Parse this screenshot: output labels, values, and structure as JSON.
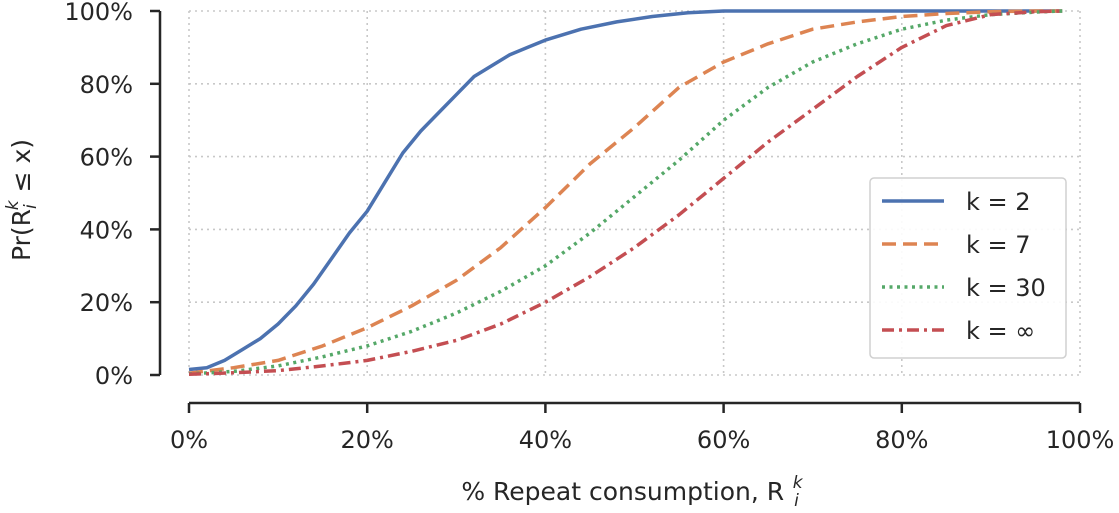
{
  "chart_data": {
    "type": "line",
    "title": "",
    "xlabel": "% Repeat consumption, R",
    "xlabel_sup": "k",
    "xlabel_sub": "i",
    "ylabel": "Pr(R",
    "ylabel_sup": "k",
    "ylabel_sub": "i",
    "ylabel_tail": " ≤ x)",
    "xlim": [
      0,
      100
    ],
    "ylim": [
      0,
      100
    ],
    "x_ticks": [
      0,
      20,
      40,
      60,
      80,
      100
    ],
    "x_tick_labels": [
      "0%",
      "20%",
      "40%",
      "60%",
      "80%",
      "100%"
    ],
    "y_ticks": [
      0,
      20,
      40,
      60,
      80,
      100
    ],
    "y_tick_labels": [
      "0%",
      "20%",
      "40%",
      "60%",
      "80%",
      "100%"
    ],
    "grid": true,
    "legend_position": "center-right",
    "series": [
      {
        "name": "k = 2",
        "color": "#4c72b0",
        "style": "solid",
        "x": [
          0,
          2,
          4,
          6,
          8,
          10,
          12,
          14,
          16,
          18,
          20,
          22,
          24,
          26,
          28,
          30,
          32,
          34,
          36,
          38,
          40,
          44,
          48,
          52,
          56,
          60,
          70,
          80,
          90,
          98
        ],
        "y": [
          1.5,
          2,
          4,
          7,
          10,
          14,
          19,
          25,
          32,
          39,
          45,
          53,
          61,
          67,
          72,
          77,
          82,
          85,
          88,
          90,
          92,
          95,
          97,
          98.5,
          99.5,
          100,
          100,
          100,
          100,
          100
        ]
      },
      {
        "name": "k = 7",
        "color": "#dd8452",
        "style": "dashed",
        "x": [
          0,
          5,
          10,
          15,
          20,
          25,
          30,
          35,
          40,
          45,
          50,
          55,
          60,
          65,
          70,
          75,
          80,
          85,
          90,
          95,
          98
        ],
        "y": [
          0.5,
          2,
          4,
          8,
          13,
          19,
          26,
          35,
          46,
          58,
          68,
          79,
          86,
          91,
          95,
          97,
          98.5,
          99.3,
          99.8,
          100,
          100
        ]
      },
      {
        "name": "k = 30",
        "color": "#55a868",
        "style": "dotted",
        "x": [
          0,
          5,
          10,
          15,
          20,
          25,
          30,
          35,
          40,
          45,
          50,
          55,
          60,
          65,
          70,
          75,
          80,
          85,
          90,
          95,
          98
        ],
        "y": [
          0.3,
          1,
          2.5,
          5,
          8,
          12,
          17,
          23,
          30,
          39,
          49,
          59,
          70,
          79,
          86,
          91,
          95,
          97.5,
          99,
          99.7,
          100
        ]
      },
      {
        "name": "k = ∞",
        "color": "#c44e52",
        "style": "dashdot",
        "x": [
          0,
          5,
          10,
          15,
          20,
          25,
          30,
          35,
          40,
          45,
          50,
          55,
          60,
          65,
          70,
          75,
          80,
          85,
          90,
          95,
          98
        ],
        "y": [
          0.2,
          0.6,
          1.2,
          2.5,
          4,
          6.5,
          9.5,
          14,
          20,
          27,
          35,
          44,
          54,
          64,
          73,
          82,
          90,
          96,
          99,
          99.8,
          100
        ]
      }
    ]
  }
}
